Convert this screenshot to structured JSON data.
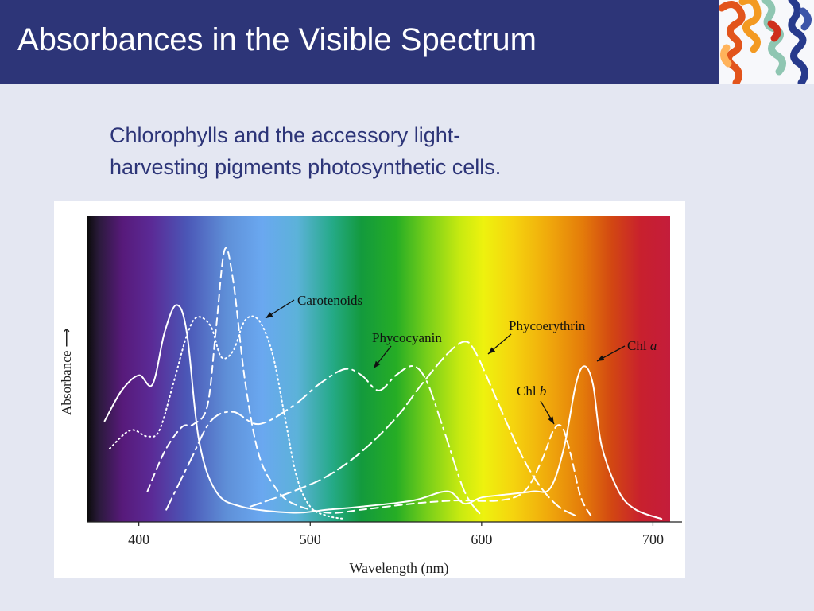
{
  "slide": {
    "title": "Absorbances in the Visible Spectrum",
    "subtitle_lines": [
      "Chlorophylls and the accessory light-",
      "harvesting pigments photosynthetic cells."
    ],
    "header_color": "#2d3578",
    "background_color": "#e4e7f2",
    "thumbnail_icon": "protein-helix-icon"
  },
  "chart_data": {
    "type": "line",
    "title": "",
    "xlabel": "Wavelength (nm)",
    "ylabel": "Absorbance ⟶",
    "xlim": [
      370,
      710
    ],
    "ylim": [
      0,
      1
    ],
    "x_ticks": [
      400,
      500,
      600,
      700
    ],
    "y_ticks": [],
    "grid": false,
    "background": "visible-spectrum gradient (violet to red)",
    "series": [
      {
        "name": "Chl a",
        "style": "solid",
        "points": [
          [
            380,
            0.33
          ],
          [
            390,
            0.43
          ],
          [
            400,
            0.48
          ],
          [
            408,
            0.45
          ],
          [
            415,
            0.62
          ],
          [
            422,
            0.71
          ],
          [
            428,
            0.62
          ],
          [
            435,
            0.27
          ],
          [
            445,
            0.1
          ],
          [
            460,
            0.05
          ],
          [
            490,
            0.03
          ],
          [
            510,
            0.04
          ],
          [
            530,
            0.05
          ],
          [
            560,
            0.07
          ],
          [
            580,
            0.1
          ],
          [
            590,
            0.06
          ],
          [
            600,
            0.08
          ],
          [
            615,
            0.09
          ],
          [
            630,
            0.1
          ],
          [
            640,
            0.11
          ],
          [
            648,
            0.24
          ],
          [
            655,
            0.45
          ],
          [
            660,
            0.51
          ],
          [
            665,
            0.45
          ],
          [
            670,
            0.25
          ],
          [
            680,
            0.1
          ],
          [
            690,
            0.04
          ],
          [
            705,
            0.01
          ]
        ]
      },
      {
        "name": "Chl b",
        "style": "dashed",
        "points": [
          [
            405,
            0.1
          ],
          [
            415,
            0.23
          ],
          [
            425,
            0.31
          ],
          [
            432,
            0.32
          ],
          [
            440,
            0.38
          ],
          [
            445,
            0.63
          ],
          [
            450,
            0.89
          ],
          [
            455,
            0.79
          ],
          [
            462,
            0.46
          ],
          [
            470,
            0.22
          ],
          [
            480,
            0.11
          ],
          [
            490,
            0.06
          ],
          [
            510,
            0.03
          ],
          [
            530,
            0.04
          ],
          [
            560,
            0.06
          ],
          [
            585,
            0.07
          ],
          [
            610,
            0.07
          ],
          [
            625,
            0.1
          ],
          [
            635,
            0.2
          ],
          [
            642,
            0.3
          ],
          [
            647,
            0.31
          ],
          [
            652,
            0.22
          ],
          [
            658,
            0.08
          ],
          [
            665,
            0.01
          ]
        ]
      },
      {
        "name": "Carotenoids",
        "style": "dotted",
        "points": [
          [
            383,
            0.24
          ],
          [
            395,
            0.3
          ],
          [
            405,
            0.28
          ],
          [
            412,
            0.3
          ],
          [
            420,
            0.45
          ],
          [
            428,
            0.61
          ],
          [
            434,
            0.67
          ],
          [
            442,
            0.64
          ],
          [
            448,
            0.54
          ],
          [
            455,
            0.56
          ],
          [
            462,
            0.66
          ],
          [
            470,
            0.66
          ],
          [
            478,
            0.55
          ],
          [
            485,
            0.35
          ],
          [
            492,
            0.15
          ],
          [
            500,
            0.05
          ],
          [
            510,
            0.02
          ],
          [
            520,
            0.01
          ]
        ]
      },
      {
        "name": "Phycocyanin",
        "style": "dash-dot",
        "points": [
          [
            416,
            0.04
          ],
          [
            430,
            0.2
          ],
          [
            442,
            0.33
          ],
          [
            455,
            0.36
          ],
          [
            470,
            0.32
          ],
          [
            490,
            0.38
          ],
          [
            505,
            0.45
          ],
          [
            520,
            0.5
          ],
          [
            530,
            0.48
          ],
          [
            540,
            0.43
          ],
          [
            550,
            0.48
          ],
          [
            560,
            0.51
          ],
          [
            568,
            0.46
          ],
          [
            578,
            0.3
          ],
          [
            590,
            0.1
          ],
          [
            600,
            0.02
          ]
        ]
      },
      {
        "name": "Phycoerythrin",
        "style": "long-dash",
        "points": [
          [
            465,
            0.05
          ],
          [
            490,
            0.1
          ],
          [
            510,
            0.15
          ],
          [
            530,
            0.23
          ],
          [
            550,
            0.34
          ],
          [
            565,
            0.45
          ],
          [
            580,
            0.55
          ],
          [
            590,
            0.59
          ],
          [
            596,
            0.56
          ],
          [
            605,
            0.45
          ],
          [
            615,
            0.32
          ],
          [
            625,
            0.2
          ],
          [
            635,
            0.11
          ],
          [
            645,
            0.05
          ],
          [
            655,
            0.02
          ]
        ]
      }
    ],
    "annotations": [
      {
        "text": "Carotenoids",
        "series": "Carotenoids"
      },
      {
        "text": "Phycocyanin",
        "series": "Phycocyanin"
      },
      {
        "text": "Phycoerythrin",
        "series": "Phycoerythrin"
      },
      {
        "text": "Chl b",
        "series": "Chl b"
      },
      {
        "text": "Chl a",
        "series": "Chl a"
      }
    ]
  }
}
